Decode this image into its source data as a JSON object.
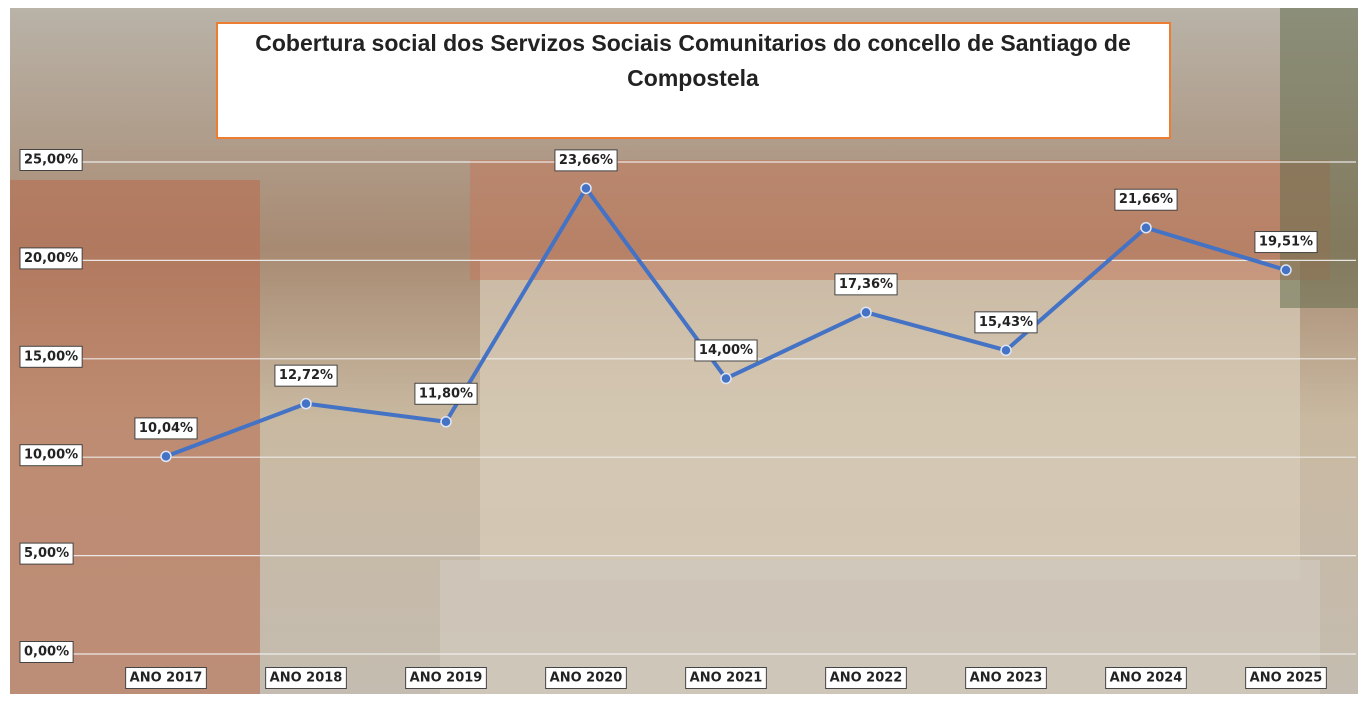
{
  "chart_data": {
    "type": "line",
    "title": "Cobertura social dos Servizos Sociais Comunitarios do concello de Santiago de Compostela",
    "categories": [
      "ANO 2017",
      "ANO 2018",
      "ANO 2019",
      "ANO 2020",
      "ANO 2021",
      "ANO 2022",
      "ANO 2023",
      "ANO 2024",
      "ANO 2025"
    ],
    "values": [
      10.04,
      12.72,
      11.8,
      23.66,
      14.0,
      17.36,
      15.43,
      21.66,
      19.51
    ],
    "value_labels": [
      "10,04%",
      "12,72%",
      "11,80%",
      "23,66%",
      "14,00%",
      "17,36%",
      "15,43%",
      "21,66%",
      "19,51%"
    ],
    "color": "#4472c4",
    "ylim": [
      0,
      25
    ],
    "yticks": [
      {
        "value": 0,
        "label": "0,00%"
      },
      {
        "value": 5,
        "label": "5,00%"
      },
      {
        "value": 10,
        "label": "10,00%"
      },
      {
        "value": 15,
        "label": "15,00%"
      },
      {
        "value": 20,
        "label": "20,00%"
      },
      {
        "value": 25,
        "label": "25,00%"
      }
    ],
    "grid": true
  }
}
